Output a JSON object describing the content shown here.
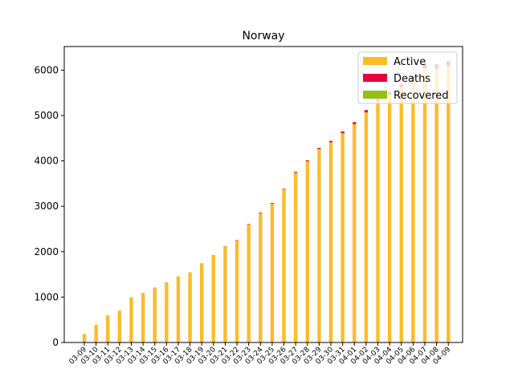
{
  "chart_data": {
    "type": "bar",
    "stacked": true,
    "title": "Norway",
    "xlabel": "",
    "ylabel": "",
    "ylim": [
      0,
      6520
    ],
    "yticks": [
      0,
      1000,
      2000,
      3000,
      4000,
      5000,
      6000
    ],
    "categories": [
      "03-09",
      "03-10",
      "03-11",
      "03-12",
      "03-13",
      "03-14",
      "03-15",
      "03-16",
      "03-17",
      "03-18",
      "03-19",
      "03-20",
      "03-21",
      "03-22",
      "03-23",
      "03-24",
      "03-25",
      "03-26",
      "03-27",
      "03-28",
      "03-29",
      "03-30",
      "03-31",
      "04-01",
      "04-02",
      "04-03",
      "04-04",
      "04-05",
      "04-06",
      "04-07",
      "04-08",
      "04-09"
    ],
    "series": [
      {
        "name": "Active",
        "color": "#fbbc2c",
        "values": [
          190,
          390,
          600,
          700,
          990,
          1090,
          1210,
          1320,
          1450,
          1540,
          1730,
          1910,
          2110,
          2250,
          2600,
          2850,
          3060,
          3370,
          3740,
          3990,
          4260,
          4410,
          4610,
          4810,
          5070,
          5310,
          5460,
          5620,
          5800,
          6040,
          6030,
          6090
        ]
      },
      {
        "name": "Deaths",
        "color": "#e8003d",
        "values": [
          0,
          0,
          0,
          0,
          0,
          1,
          1,
          3,
          3,
          3,
          7,
          7,
          7,
          7,
          10,
          12,
          14,
          14,
          19,
          23,
          25,
          30,
          39,
          43,
          50,
          59,
          62,
          71,
          76,
          89,
          101,
          108
        ]
      },
      {
        "name": "Recovered",
        "color": "#92c110",
        "values": [
          0,
          0,
          0,
          0,
          0,
          0,
          0,
          0,
          0,
          0,
          0,
          0,
          0,
          0,
          0,
          0,
          0,
          0,
          0,
          0,
          0,
          0,
          0,
          0,
          0,
          0,
          0,
          0,
          0,
          0,
          0,
          0
        ]
      }
    ],
    "legend": {
      "placement": "top-right"
    },
    "grid": false
  }
}
